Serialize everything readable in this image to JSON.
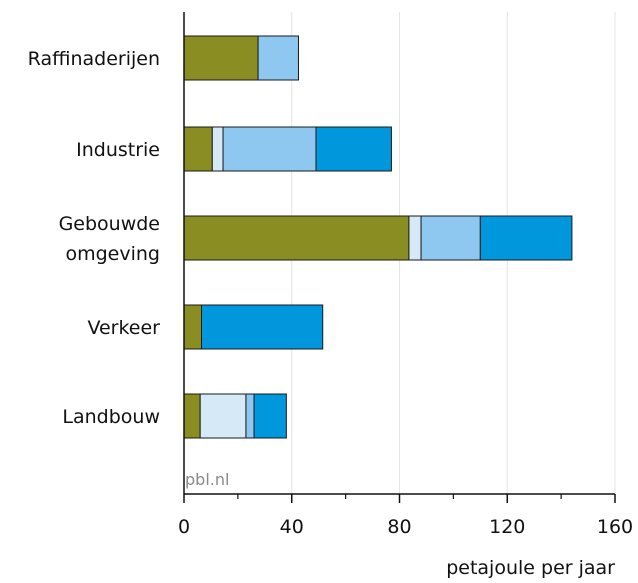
{
  "chart_data": {
    "type": "bar",
    "orientation": "horizontal",
    "stacked": true,
    "categories": [
      [
        "Raffinaderijen"
      ],
      [
        "Industrie"
      ],
      [
        "Gebouwde",
        "omgeving"
      ],
      [
        "Verkeer"
      ],
      [
        "Landbouw"
      ]
    ],
    "series": [
      {
        "color": "#8a8e22",
        "values": [
          27.5,
          10.5,
          83.5,
          6.5,
          6
        ]
      },
      {
        "color": "#d6e9f6",
        "values": [
          0,
          4,
          4.5,
          0,
          17
        ]
      },
      {
        "color": "#8ec8f0",
        "values": [
          15,
          34.5,
          22,
          0,
          3
        ]
      },
      {
        "color": "#0097dc",
        "values": [
          0,
          28,
          34,
          45,
          12
        ]
      }
    ],
    "xlim": [
      0,
      160
    ],
    "xticks": [
      0,
      40,
      80,
      120,
      160
    ],
    "xlabel": "petajoule per jaar",
    "grid": true,
    "source": "pbl.nl"
  }
}
